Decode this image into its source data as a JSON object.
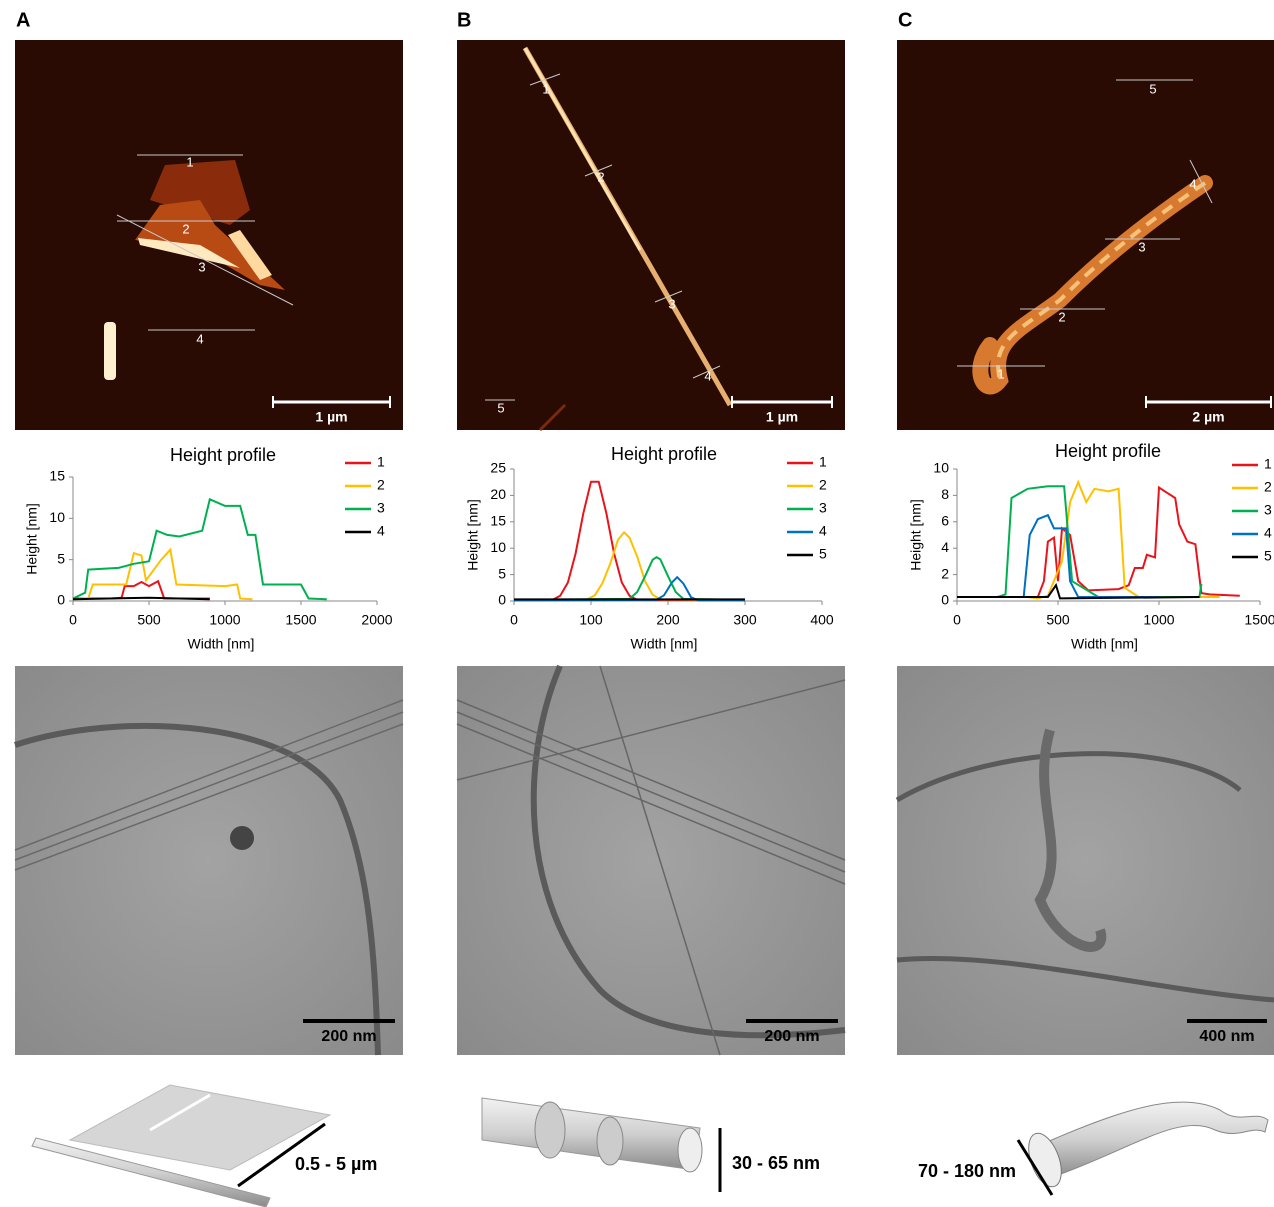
{
  "panels": [
    {
      "label": "A",
      "afm_scale": "1 µm",
      "afm_line_labels": [
        "1",
        "2",
        "3",
        "4"
      ],
      "tem_scale": "200 nm",
      "dimension": "0.5 - 5 µm"
    },
    {
      "label": "B",
      "afm_scale": "1 µm",
      "afm_line_labels": [
        "1",
        "2",
        "3",
        "4",
        "5"
      ],
      "tem_scale": "200 nm",
      "dimension": "30 - 65 nm"
    },
    {
      "label": "C",
      "afm_scale": "2 µm",
      "afm_line_labels": [
        "1",
        "2",
        "3",
        "4",
        "5"
      ],
      "tem_scale": "400 nm",
      "dimension": "70 - 180 nm"
    }
  ],
  "chart_data": [
    {
      "type": "line",
      "title": "Height profile",
      "x_label": "Width [nm]",
      "y_label": "Height [nm]",
      "xlim": [
        0,
        2000
      ],
      "xticks": [
        0,
        500,
        1000,
        1500,
        2000
      ],
      "ylim": [
        0,
        15
      ],
      "yticks": [
        0,
        5,
        10,
        15
      ],
      "series": [
        {
          "name": "1",
          "color": "#e8141b",
          "x": [
            0,
            250,
            320,
            340,
            400,
            450,
            500,
            560,
            600,
            900
          ],
          "values": [
            0.3,
            0.3,
            0.4,
            1.8,
            1.8,
            2.3,
            1.8,
            2.4,
            0.3,
            0.3
          ]
        },
        {
          "name": "2",
          "color": "#ffc000",
          "x": [
            0,
            100,
            130,
            350,
            400,
            450,
            480,
            580,
            640,
            680,
            1000,
            1080,
            1100,
            1180
          ],
          "values": [
            0.2,
            0.3,
            2,
            2,
            5.8,
            5.5,
            2.5,
            5,
            6.2,
            2,
            1.8,
            2,
            0.3,
            0.2
          ]
        },
        {
          "name": "3",
          "color": "#00b050",
          "x": [
            0,
            80,
            100,
            300,
            400,
            500,
            550,
            620,
            700,
            850,
            900,
            1000,
            1100,
            1150,
            1200,
            1250,
            1500,
            1550,
            1670
          ],
          "values": [
            0.3,
            1,
            3.8,
            4,
            4.5,
            4.8,
            8.5,
            8,
            7.8,
            8.5,
            12.3,
            11.5,
            11.5,
            8,
            8,
            2,
            2,
            0.3,
            0.2
          ]
        },
        {
          "name": "4",
          "color": "#000000",
          "x": [
            0,
            500,
            900
          ],
          "values": [
            0.2,
            0.4,
            0.2
          ]
        }
      ]
    },
    {
      "type": "line",
      "title": "Height profile",
      "x_label": "Width [nm]",
      "y_label": "Height [nm]",
      "xlim": [
        0,
        400
      ],
      "xticks": [
        0,
        100,
        200,
        300,
        400
      ],
      "ylim": [
        0,
        25
      ],
      "yticks": [
        0,
        5,
        10,
        15,
        20,
        25
      ],
      "series": [
        {
          "name": "1",
          "color": "#e8141b",
          "x": [
            0,
            50,
            60,
            70,
            80,
            90,
            100,
            110,
            120,
            130,
            140,
            150,
            160,
            300
          ],
          "values": [
            0.2,
            0.2,
            1,
            3.5,
            9,
            16.6,
            22.6,
            22.6,
            16.6,
            9,
            3.5,
            1,
            0.2,
            0.2
          ]
        },
        {
          "name": "2",
          "color": "#ffc000",
          "x": [
            0,
            95,
            105,
            115,
            125,
            135,
            143,
            150,
            160,
            170,
            180,
            190,
            300
          ],
          "values": [
            0.2,
            0.3,
            1.1,
            3.4,
            7.1,
            11.6,
            13,
            12,
            8.4,
            3.8,
            1.2,
            0.3,
            0.2
          ]
        },
        {
          "name": "3",
          "color": "#00b050",
          "x": [
            0,
            150,
            160,
            170,
            180,
            185,
            190,
            200,
            210,
            220,
            300
          ],
          "values": [
            0.2,
            0.4,
            1.7,
            4.6,
            7.8,
            8.3,
            7.9,
            4.7,
            1.7,
            0.4,
            0.2
          ]
        },
        {
          "name": "4",
          "color": "#0070c0",
          "x": [
            0,
            185,
            195,
            205,
            212,
            220,
            230,
            240,
            300
          ],
          "values": [
            0.1,
            0.2,
            1.1,
            3.5,
            4.5,
            3.3,
            0.7,
            0.1,
            0.1
          ]
        },
        {
          "name": "5",
          "color": "#000000",
          "x": [
            0,
            300
          ],
          "values": [
            0.3,
            0.3
          ]
        }
      ]
    },
    {
      "type": "line",
      "title": "Height profile",
      "x_label": "Width [nm]",
      "y_label": "Height [nm]",
      "xlim": [
        0,
        1500
      ],
      "xticks": [
        0,
        500,
        1000,
        1500
      ],
      "ylim": [
        0,
        10
      ],
      "yticks": [
        0,
        2,
        4,
        6,
        8,
        10
      ],
      "series": [
        {
          "name": "1",
          "color": "#e8141b",
          "x": [
            0,
            400,
            430,
            450,
            480,
            500,
            520,
            560,
            600,
            650,
            800,
            850,
            880,
            920,
            940,
            980,
            1000,
            1040,
            1080,
            1100,
            1140,
            1180,
            1210,
            1250,
            1400
          ],
          "values": [
            0.3,
            0.3,
            1.5,
            4.5,
            4.8,
            1.5,
            5.5,
            5,
            1.5,
            0.8,
            0.9,
            1.2,
            2.5,
            2.5,
            3.5,
            3.3,
            8.6,
            8.2,
            7.8,
            5.8,
            4.5,
            4.3,
            0.6,
            0.5,
            0.4
          ]
        },
        {
          "name": "2",
          "color": "#ffc000",
          "x": [
            0,
            350,
            400,
            450,
            520,
            560,
            600,
            640,
            680,
            750,
            800,
            830,
            900,
            1300
          ],
          "values": [
            0.3,
            0.3,
            0.2,
            0.4,
            3,
            7.5,
            9,
            7.5,
            8.5,
            8.3,
            8.5,
            1,
            0.3,
            0.3
          ]
        },
        {
          "name": "3",
          "color": "#00b050",
          "x": [
            0,
            200,
            240,
            270,
            350,
            450,
            530,
            570,
            700,
            1100,
            1200,
            1210
          ],
          "values": [
            0.3,
            0.3,
            0.5,
            7.8,
            8.5,
            8.7,
            8.7,
            1.5,
            0.3,
            0.3,
            0.3,
            1.3
          ]
        },
        {
          "name": "4",
          "color": "#0070c0",
          "x": [
            0,
            330,
            360,
            400,
            450,
            480,
            540,
            560,
            600,
            1000
          ],
          "values": [
            0.3,
            0.3,
            5,
            6.2,
            6.5,
            5.5,
            5.5,
            1.5,
            0.3,
            0.3
          ]
        },
        {
          "name": "5",
          "color": "#000000",
          "x": [
            0,
            450,
            490,
            510,
            1200
          ],
          "values": [
            0.3,
            0.3,
            1.2,
            0.2,
            0.3
          ]
        }
      ]
    }
  ]
}
